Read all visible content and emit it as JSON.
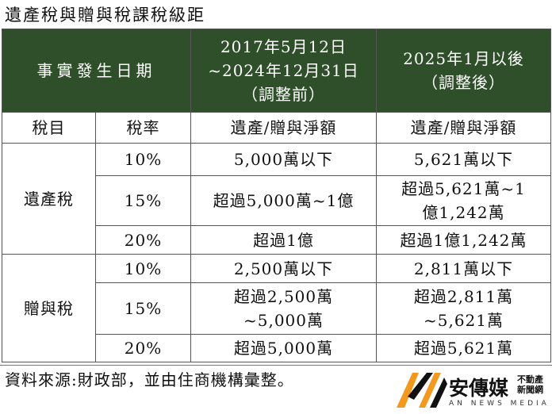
{
  "title": "遺產稅與贈與稅課稅級距",
  "header": {
    "col_event": "事實發生日期",
    "col_period1_line1": "2017年5月12日",
    "col_period1_line2": "~2024年12月31日",
    "col_period1_line3": "（調整前）",
    "col_period2_line1": "2025年1月以後",
    "col_period2_line2": "（調整後）"
  },
  "subheader": {
    "tax_item": "稅目",
    "tax_rate": "稅率",
    "net_amount_1": "遺產/贈與淨額",
    "net_amount_2": "遺產/贈與淨額"
  },
  "sections": [
    {
      "name": "遺產稅",
      "rows": [
        {
          "rate": "10%",
          "before": [
            "5,000萬以下"
          ],
          "after": [
            "5,621萬以下"
          ]
        },
        {
          "rate": "15%",
          "before": [
            "超過5,000萬~1億"
          ],
          "after": [
            "超過5,621萬~1",
            "億1,242萬"
          ]
        },
        {
          "rate": "20%",
          "before": [
            "超過1億"
          ],
          "after": [
            "超過1億1,242萬"
          ]
        }
      ]
    },
    {
      "name": "贈與稅",
      "rows": [
        {
          "rate": "10%",
          "before": [
            "2,500萬以下"
          ],
          "after": [
            "2,811萬以下"
          ]
        },
        {
          "rate": "15%",
          "before": [
            "超過2,500萬",
            "~5,000萬"
          ],
          "after": [
            "超過2,811萬",
            "~5,621萬"
          ]
        },
        {
          "rate": "20%",
          "before": [
            "超過5,000萬"
          ],
          "after": [
            "超過5,621萬"
          ]
        }
      ]
    }
  ],
  "footer": {
    "source": "資料來源:財政部，並由住商機構彙整。"
  },
  "logo": {
    "brand": "安傳媒",
    "tag_line1": "不動產",
    "tag_line2": "新聞網",
    "english": "AN NEWS MEDIA",
    "colors": {
      "orange": "#f39a1e",
      "dark": "#111111"
    }
  },
  "colors": {
    "header_bg": "#2f4f2a",
    "header_text": "#ffffff",
    "border": "#555555"
  }
}
